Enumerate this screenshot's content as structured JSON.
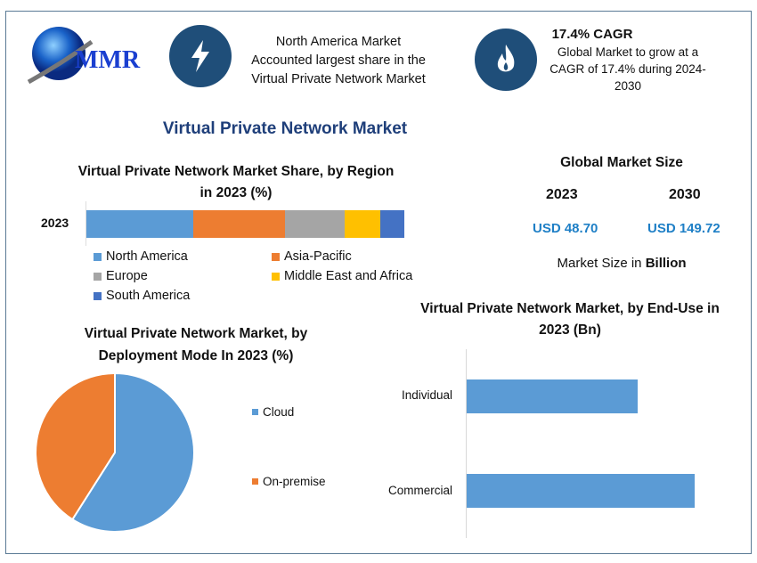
{
  "logo": {
    "text": "MMR"
  },
  "highlights": [
    {
      "icon": "lightning-icon",
      "lines": [
        "North America Market",
        "Accounted largest share in the",
        "Virtual Private Network Market"
      ]
    },
    {
      "icon": "flame-icon",
      "title": "17.4% CAGR",
      "lines": [
        "Global Market to grow at a",
        "CAGR of 17.4% during 2024-",
        "2030"
      ]
    }
  ],
  "main_title": "Virtual Private Network Market",
  "market_size": {
    "title": "Global Market Size",
    "years": [
      "2023",
      "2030"
    ],
    "values": [
      "USD 48.70",
      "USD 149.72"
    ],
    "note_prefix": "Market Size in ",
    "note_bold": "Billion"
  },
  "colors": {
    "north_america": "#5b9bd5",
    "asia_pacific": "#ed7d31",
    "europe": "#a5a5a5",
    "mea": "#ffc000",
    "south_america": "#4472c4",
    "frame": "#5a7a95",
    "icon_bg": "#1f4e79",
    "usd": "#1e7fc6"
  },
  "chart_data": [
    {
      "type": "bar",
      "orientation": "horizontal-stacked",
      "title": "Virtual Private Network Market Share, by Region in 2023 (%)",
      "categories": [
        "2023"
      ],
      "series": [
        {
          "name": "North America",
          "values": [
            33.6
          ]
        },
        {
          "name": "Asia-Pacific",
          "values": [
            28.9
          ]
        },
        {
          "name": "Europe",
          "values": [
            18.8
          ]
        },
        {
          "name": "Middle East and Africa",
          "values": [
            11.2
          ]
        },
        {
          "name": "South America",
          "values": [
            7.5
          ]
        }
      ],
      "legend": "bottom",
      "grid": false
    },
    {
      "type": "pie",
      "title": "Virtual Private Network Market, by Deployment Mode In 2023 (%)",
      "labels": [
        "Cloud",
        "On-premise"
      ],
      "values": [
        59,
        41
      ],
      "legend": "right"
    },
    {
      "type": "bar",
      "orientation": "horizontal",
      "title": "Virtual Private Network Market, by End-Use in 2023 (Bn)",
      "categories": [
        "Individual",
        "Commercial"
      ],
      "values": [
        20.9,
        27.8
      ],
      "grid": false
    }
  ]
}
